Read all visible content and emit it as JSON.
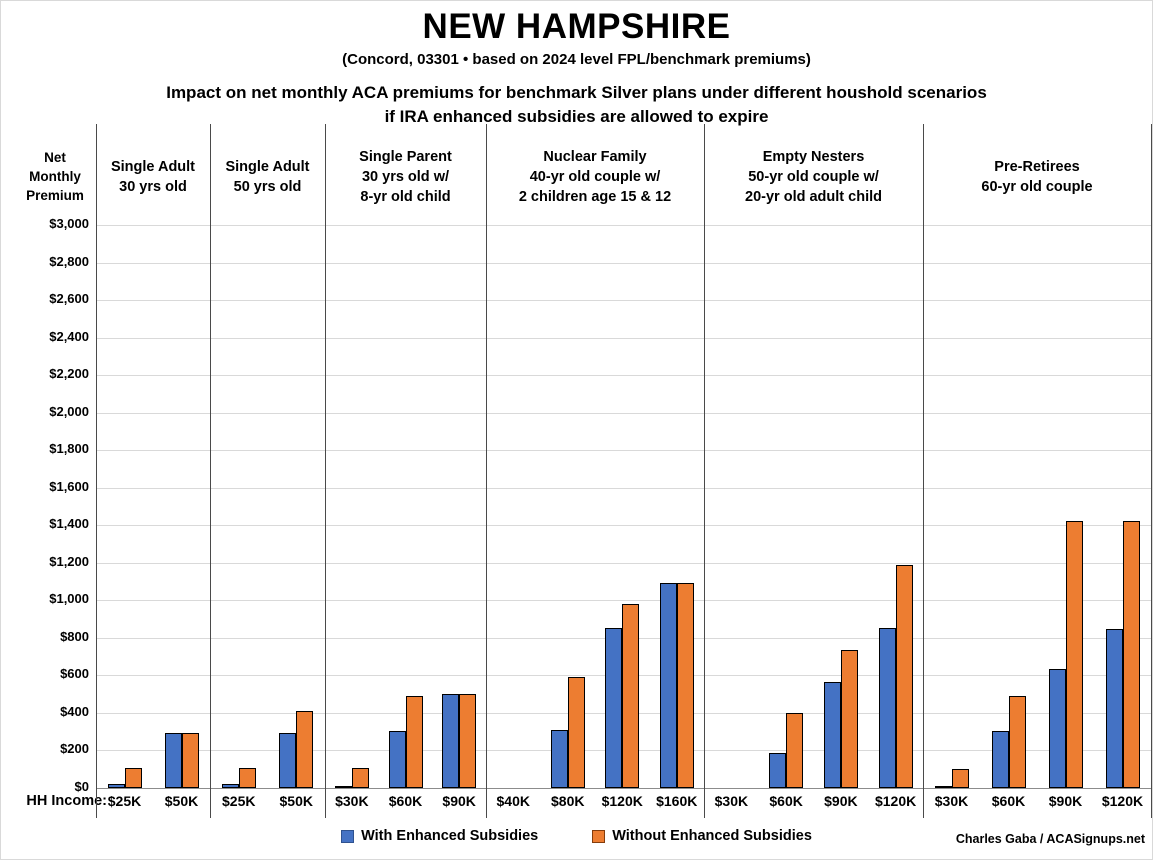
{
  "chart_data": {
    "type": "bar",
    "title": "NEW HAMPSHIRE",
    "subtitle": "(Concord, 03301 • based on 2024 level FPL/benchmark premiums)",
    "heading_line1": "Impact on net monthly ACA premiums for benchmark Silver plans under different houshold scenarios",
    "heading_line2": "if IRA enhanced subsidies are allowed to expire",
    "y_axis_title_lines": [
      "Net",
      "Monthly",
      "Premium"
    ],
    "x_axis_label": "HH Income:",
    "y_axis": {
      "min": 0,
      "max": 3000,
      "step": 200,
      "grid": true
    },
    "y_ticks": [
      "$0",
      "$200",
      "$400",
      "$600",
      "$800",
      "$1,000",
      "$1,200",
      "$1,400",
      "$1,600",
      "$1,800",
      "$2,000",
      "$2,200",
      "$2,400",
      "$2,600",
      "$2,800",
      "$3,000"
    ],
    "legend_position": "bottom-center",
    "series": [
      {
        "name": "With Enhanced Subsidies",
        "key": "with_enhanced",
        "color": "#4472C4",
        "swatch_border": "#2F528F"
      },
      {
        "name": "Without Enhanced Subsidies",
        "key": "without_enhanced",
        "color": "#ED7D31",
        "swatch_border": "#843C0C"
      }
    ],
    "groups": [
      {
        "header_lines": [
          "Single Adult",
          "30 yrs old"
        ],
        "incomes": [
          "$25K",
          "$50K"
        ],
        "with_enhanced": [
          20,
          295
        ],
        "without_enhanced": [
          105,
          295
        ]
      },
      {
        "header_lines": [
          "Single Adult",
          "50 yrs old"
        ],
        "incomes": [
          "$25K",
          "$50K"
        ],
        "with_enhanced": [
          20,
          295
        ],
        "without_enhanced": [
          105,
          410
        ]
      },
      {
        "header_lines": [
          "Single Parent",
          "30 yrs old w/",
          "8-yr old child"
        ],
        "incomes": [
          "$30K",
          "$60K",
          "$90K"
        ],
        "with_enhanced": [
          10,
          305,
          500
        ],
        "without_enhanced": [
          105,
          490,
          500
        ]
      },
      {
        "header_lines": [
          "Nuclear Family",
          "40-yr old couple w/",
          "2 children age 15 & 12"
        ],
        "incomes": [
          "$40K",
          "$80K",
          "$120K",
          "$160K"
        ],
        "with_enhanced": [
          0,
          310,
          850,
          1090
        ],
        "without_enhanced": [
          0,
          590,
          980,
          1090
        ]
      },
      {
        "header_lines": [
          "Empty Nesters",
          "50-yr old couple w/",
          "20-yr old adult child"
        ],
        "incomes": [
          "$30K",
          "$60K",
          "$90K",
          "$120K"
        ],
        "with_enhanced": [
          0,
          185,
          565,
          850
        ],
        "without_enhanced": [
          0,
          400,
          735,
          1190
        ]
      },
      {
        "header_lines": [
          "Pre-Retirees",
          "60-yr old couple"
        ],
        "incomes": [
          "$30K",
          "$60K",
          "$90K",
          "$120K"
        ],
        "with_enhanced": [
          10,
          305,
          635,
          845
        ],
        "without_enhanced": [
          100,
          490,
          1425,
          1425
        ]
      }
    ],
    "credit": "Charles Gaba / ACASignups.net"
  }
}
